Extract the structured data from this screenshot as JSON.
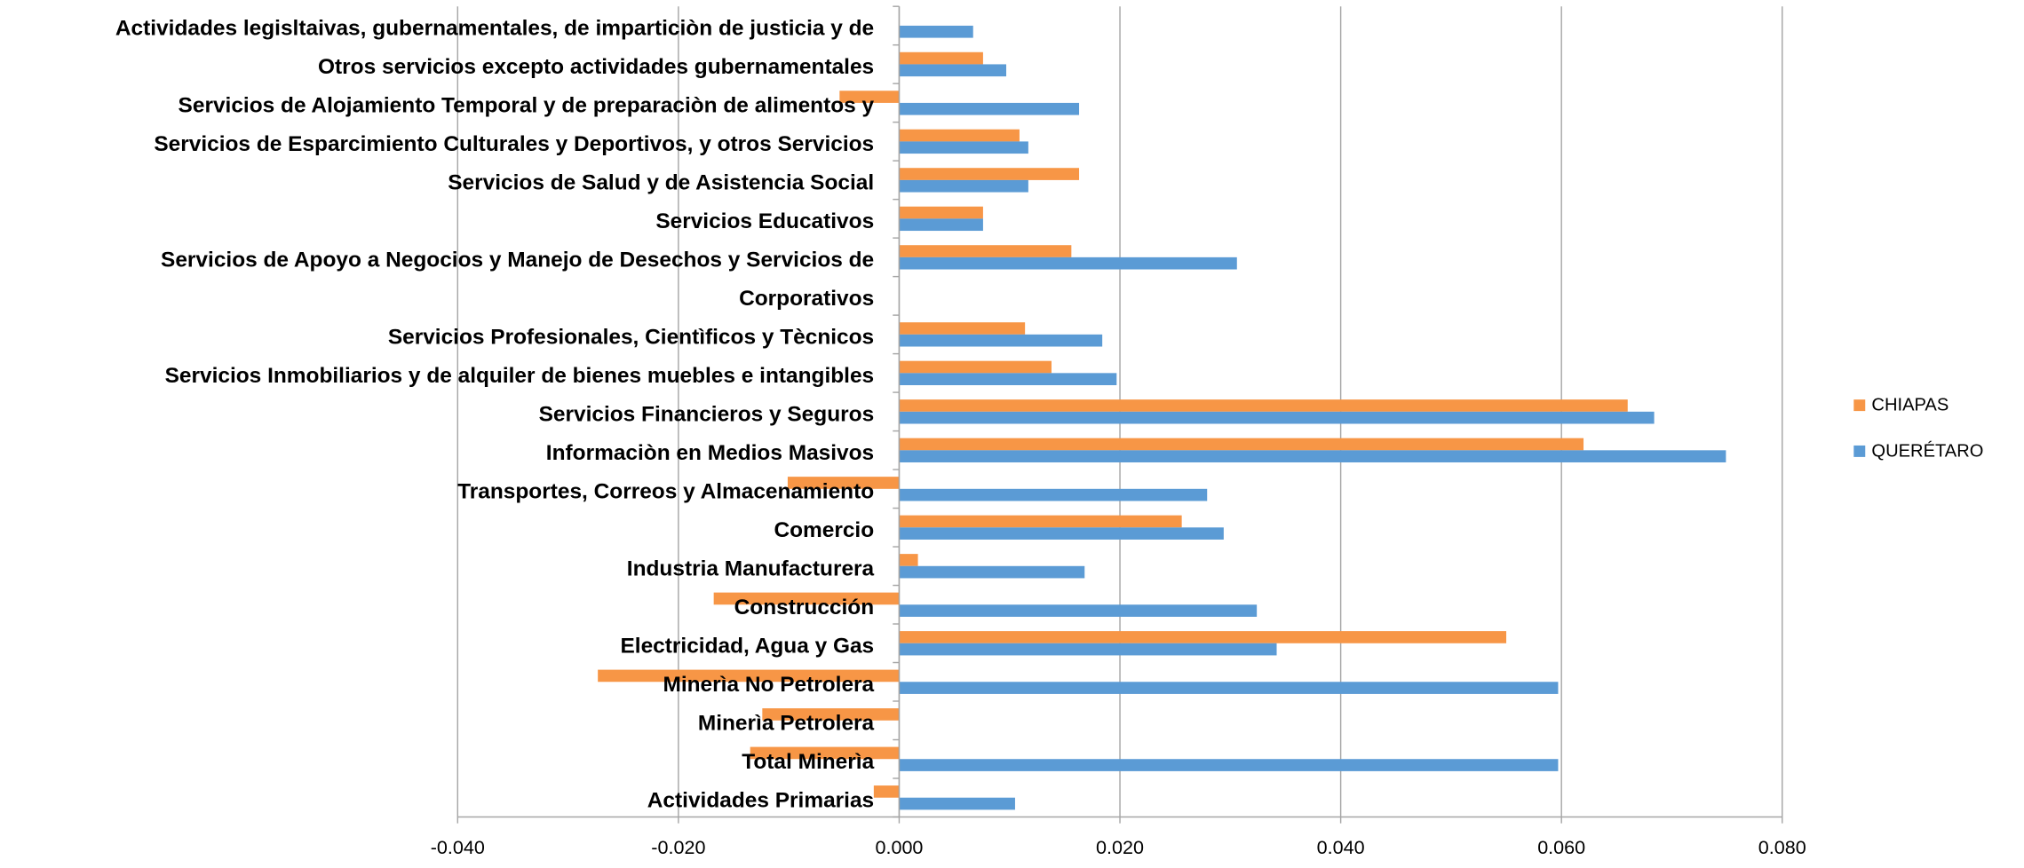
{
  "chart_data": {
    "type": "bar",
    "orientation": "horizontal",
    "categories": [
      "Actividades Primarias",
      "Total Minerìa",
      "Minerìa Petrolera",
      "Minerìa No Petrolera",
      "Electricidad, Agua y Gas",
      "Construcción",
      "Industria Manufacturera",
      "Comercio",
      "Transportes, Correos y Almacenamiento",
      "Informaciòn en Medios Masivos",
      "Servicios Financieros y Seguros",
      "Servicios Inmobiliarios y de alquiler de bienes muebles e intangibles",
      "Servicios Profesionales, Cientìficos y Tècnicos",
      "Corporativos",
      "Servicios de Apoyo a Negocios y Manejo de Desechos y Servicios de",
      "Servicios Educativos",
      "Servicios de Salud y de Asistencia Social",
      "Servicios de Esparcimiento Culturales y Deportivos, y otros Servicios",
      "Servicios de Alojamiento Temporal y de preparaciòn de alimentos y",
      "Otros servicios excepto actividades gubernamentales",
      "Actividades legisltaivas, gubernamentales, de imparticiòn de justicia y de"
    ],
    "series": [
      {
        "name": "CHIAPAS",
        "color": "#f79646",
        "values": [
          -0.0023,
          -0.0135,
          -0.0124,
          -0.0273,
          0.055,
          -0.0168,
          0.0017,
          0.0256,
          -0.0101,
          0.062,
          0.066,
          0.0138,
          0.0114,
          null,
          0.0156,
          0.0076,
          0.0163,
          0.0109,
          -0.0054,
          0.0076,
          null
        ]
      },
      {
        "name": "QUERÉTARO",
        "color": "#5b9bd5",
        "values": [
          0.0105,
          0.0597,
          null,
          0.0597,
          0.0342,
          0.0324,
          0.0168,
          0.0294,
          0.0279,
          0.0749,
          0.0684,
          0.0197,
          0.0184,
          null,
          0.0306,
          0.0076,
          0.0117,
          0.0117,
          0.0163,
          0.0097,
          0.0067
        ]
      }
    ],
    "xlim": [
      -0.04,
      0.08
    ],
    "xticks": [
      {
        "value": -0.04,
        "label": "-0.040"
      },
      {
        "value": -0.02,
        "label": "-0.020"
      },
      {
        "value": 0,
        "label": "0.000"
      },
      {
        "value": 0.02,
        "label": "0.020"
      },
      {
        "value": 0.04,
        "label": "0.040"
      },
      {
        "value": 0.06,
        "label": "0.060"
      },
      {
        "value": 0.08,
        "label": "0.080"
      }
    ],
    "grid": true,
    "legend": "right"
  }
}
